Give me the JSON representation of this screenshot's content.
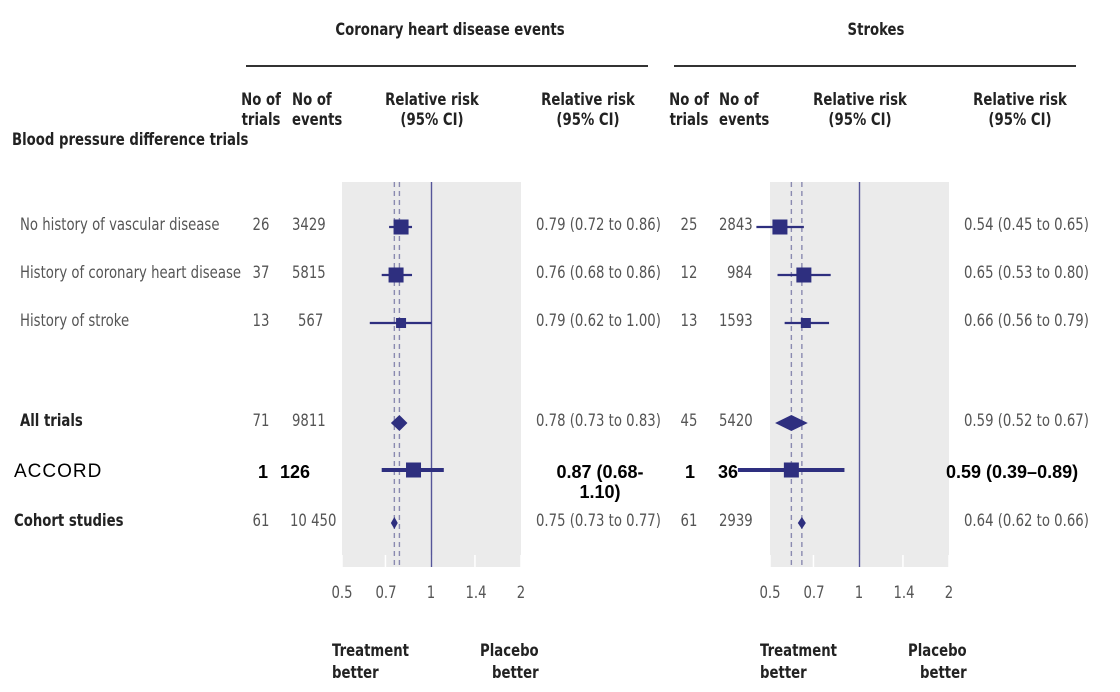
{
  "section_titles": {
    "chd": "Coronary heart disease events",
    "stroke": "Strokes"
  },
  "row_header": "Blood pressure difference trials",
  "column_headers": {
    "trials": [
      "No of",
      "trials"
    ],
    "events": [
      "No of",
      "events"
    ],
    "rr_plot": [
      "Relative risk",
      "(95% CI)"
    ],
    "rr_text": [
      "Relative risk",
      "(95% CI)"
    ]
  },
  "axis": {
    "ticks": [
      "0.5",
      "0.7",
      "1",
      "1.4",
      "2"
    ],
    "left_label": [
      "Treatment",
      "better"
    ],
    "right_label": [
      "Placebo",
      "better"
    ]
  },
  "chart_data": [
    {
      "type": "forest",
      "title": "Coronary heart disease events",
      "x_scale": "log",
      "xlim": [
        0.5,
        2
      ],
      "xticks": [
        0.5,
        0.7,
        1,
        1.4,
        2
      ],
      "reference_line": 1,
      "pooled_dashed_lines": [
        0.75,
        0.78
      ],
      "rows": [
        {
          "label": "No history of vascular disease",
          "trials": "26",
          "events": "3429",
          "rr": 0.79,
          "lo": 0.72,
          "hi": 0.86,
          "ci_text": "0.79 (0.72 to 0.86)",
          "marker": "square"
        },
        {
          "label": "History of coronary heart disease",
          "trials": "37",
          "events": "5815",
          "rr": 0.76,
          "lo": 0.68,
          "hi": 0.86,
          "ci_text": "0.76 (0.68 to 0.86)",
          "marker": "square"
        },
        {
          "label": "History of stroke",
          "trials": "13",
          "events": "567",
          "rr": 0.79,
          "lo": 0.62,
          "hi": 1.0,
          "ci_text": "0.79 (0.62 to 1.00)",
          "marker": "square"
        },
        {
          "label": "All trials",
          "trials": "71",
          "events": "9811",
          "rr": 0.78,
          "lo": 0.73,
          "hi": 0.83,
          "ci_text": "0.78 (0.73 to 0.83)",
          "marker": "diamond"
        },
        {
          "label": "ACCORD",
          "trials": "1",
          "events": "126",
          "rr": 0.87,
          "lo": 0.68,
          "hi": 1.1,
          "ci_text": "0.87 (0.68-1.10)",
          "marker": "square"
        },
        {
          "label": "Cohort studies",
          "trials": "61",
          "events": "10 450",
          "rr": 0.75,
          "lo": 0.73,
          "hi": 0.77,
          "ci_text": "0.75 (0.73 to 0.77)",
          "marker": "diamond"
        }
      ]
    },
    {
      "type": "forest",
      "title": "Strokes",
      "x_scale": "log",
      "xlim": [
        0.5,
        2
      ],
      "xticks": [
        0.5,
        0.7,
        1,
        1.4,
        2
      ],
      "reference_line": 1,
      "pooled_dashed_lines": [
        0.59,
        0.64
      ],
      "rows": [
        {
          "trials": "25",
          "events": "2843",
          "rr": 0.54,
          "lo": 0.45,
          "hi": 0.65,
          "ci_text": "0.54 (0.45 to 0.65)",
          "marker": "square"
        },
        {
          "trials": "12",
          "events": "984",
          "rr": 0.65,
          "lo": 0.53,
          "hi": 0.8,
          "ci_text": "0.65 (0.53 to 0.80)",
          "marker": "square"
        },
        {
          "trials": "13",
          "events": "1593",
          "rr": 0.66,
          "lo": 0.56,
          "hi": 0.79,
          "ci_text": "0.66 (0.56 to 0.79)",
          "marker": "square"
        },
        {
          "trials": "45",
          "events": "5420",
          "rr": 0.59,
          "lo": 0.52,
          "hi": 0.67,
          "ci_text": "0.59 (0.52 to 0.67)",
          "marker": "diamond"
        },
        {
          "trials": "1",
          "events": "36",
          "rr": 0.59,
          "lo": 0.39,
          "hi": 0.89,
          "ci_text": "0.59 (0.39–0.89)",
          "marker": "square"
        },
        {
          "trials": "61",
          "events": "2939",
          "rr": 0.64,
          "lo": 0.62,
          "hi": 0.66,
          "ci_text": "0.64 (0.62 to 0.66)",
          "marker": "diamond"
        }
      ]
    }
  ],
  "colors": {
    "marker": "#2e2f7f",
    "panel": "#ebebeb",
    "reference_line": "#555599",
    "dashed": "#8a8ab0"
  }
}
